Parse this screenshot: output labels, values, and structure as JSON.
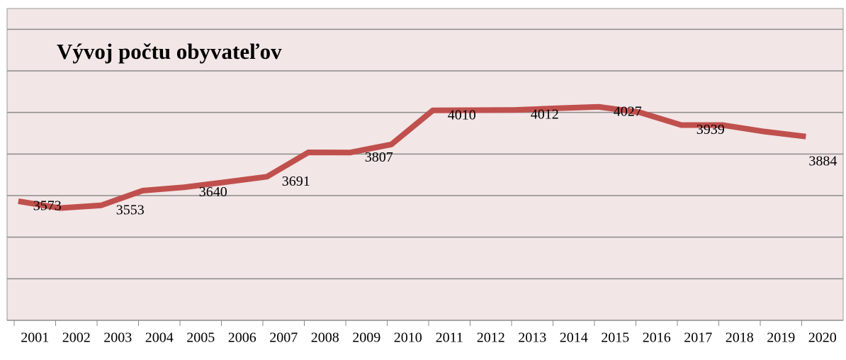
{
  "chart_data": {
    "type": "line",
    "title": "Vývoj počtu obyvateľov",
    "categories": [
      "2001",
      "2002",
      "2003",
      "2004",
      "2005",
      "2006",
      "2007",
      "2008",
      "2009",
      "2010",
      "2011",
      "2012",
      "2013",
      "2014",
      "2015",
      "2016",
      "2017",
      "2018",
      "2019",
      "2020"
    ],
    "series": [
      {
        "color": "#c0504d",
        "values": [
          3573,
          3540,
          3553,
          3624,
          3640,
          3665,
          3691,
          3808,
          3807,
          3846,
          4010,
          4011,
          4012,
          4020,
          4027,
          4000,
          3939,
          3939,
          3908,
          3884
        ],
        "value_labels": [
          "3573",
          null,
          "3553",
          null,
          "3640",
          null,
          "3691",
          null,
          "3807",
          null,
          "4010",
          null,
          "4012",
          null,
          "4027",
          null,
          "3939",
          null,
          null,
          "3884"
        ]
      }
    ],
    "ylim": [
      3000,
      4500
    ],
    "yticks": [
      3000,
      3200,
      3400,
      3600,
      3800,
      4000,
      4200,
      4400
    ],
    "grid": true
  }
}
